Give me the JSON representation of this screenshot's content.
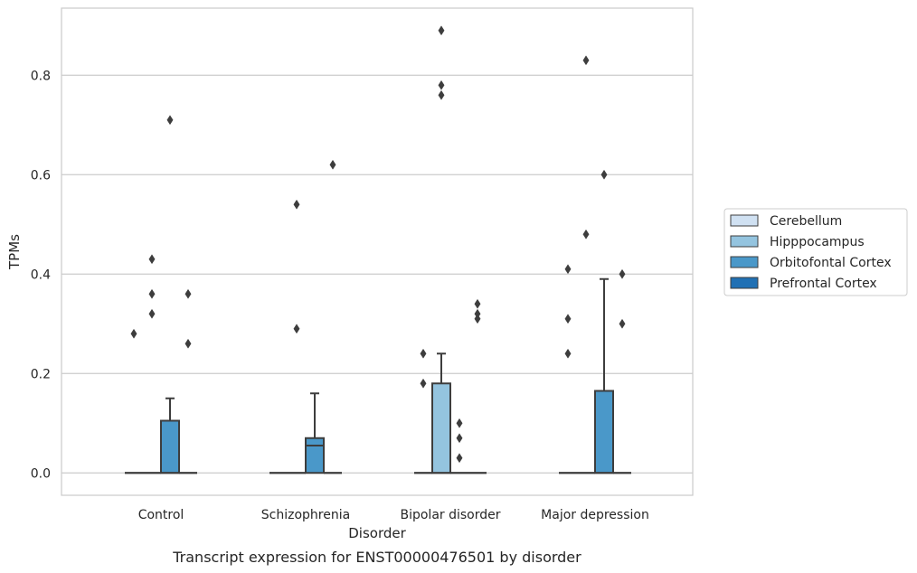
{
  "chart_data": {
    "type": "box",
    "xlabel": "Disorder",
    "ylabel": "TPMs",
    "caption": "Transcript expression for ENST00000476501 by disorder",
    "ylim": [
      -0.045,
      0.935
    ],
    "yticks": [
      0.0,
      0.2,
      0.4,
      0.6,
      0.8
    ],
    "ytick_labels": [
      "0.0",
      "0.2",
      "0.4",
      "0.6",
      "0.8"
    ],
    "grid": true,
    "legend_position": "right",
    "categories": [
      "Control",
      "Schizophrenia",
      "Bipolar disorder",
      "Major depression"
    ],
    "series": [
      {
        "name": "Cerebellum",
        "color": "#d0e1f2",
        "boxes": [
          {
            "q1": 0,
            "median": 0,
            "q3": 0,
            "whisker_low": 0,
            "whisker_high": 0,
            "fliers": [
              0.28
            ]
          },
          {
            "q1": 0,
            "median": 0,
            "q3": 0,
            "whisker_low": 0,
            "whisker_high": 0,
            "fliers": []
          },
          {
            "q1": 0,
            "median": 0,
            "q3": 0,
            "whisker_low": 0,
            "whisker_high": 0,
            "fliers": []
          },
          {
            "q1": 0,
            "median": 0,
            "q3": 0,
            "whisker_low": 0,
            "whisker_high": 0,
            "fliers": []
          }
        ]
      },
      {
        "name": "Hipppocampus",
        "color": "#94c4df",
        "boxes": [
          {
            "q1": 0,
            "median": 0,
            "q3": 0,
            "whisker_low": 0,
            "whisker_high": 0,
            "fliers": [
              0.32,
              0.36,
              0.43
            ]
          },
          {
            "q1": 0,
            "median": 0,
            "q3": 0,
            "whisker_low": 0,
            "whisker_high": 0,
            "fliers": [
              0.29,
              0.54
            ]
          },
          {
            "q1": 0,
            "median": 0,
            "q3": 0.18,
            "whisker_low": 0,
            "whisker_high": 0.24,
            "fliers": [
              0.76,
              0.78,
              0.89
            ]
          },
          {
            "q1": 0,
            "median": 0,
            "q3": 0,
            "whisker_low": 0,
            "whisker_high": 0,
            "fliers": [
              0.48,
              0.83
            ]
          }
        ]
      },
      {
        "name": "Orbitofontal Cortex",
        "color": "#4a98c9",
        "boxes": [
          {
            "q1": 0,
            "median": 0,
            "q3": 0.105,
            "whisker_low": 0,
            "whisker_high": 0.15,
            "fliers": [
              0.71
            ]
          },
          {
            "q1": 0,
            "median": 0.055,
            "q3": 0.07,
            "whisker_low": 0,
            "whisker_high": 0.16,
            "fliers": []
          },
          {
            "q1": 0,
            "median": 0,
            "q3": 0,
            "whisker_low": 0,
            "whisker_high": 0,
            "fliers": [
              0.03,
              0.07,
              0.1
            ]
          },
          {
            "q1": 0,
            "median": 0,
            "q3": 0.165,
            "whisker_low": 0,
            "whisker_high": 0.39,
            "fliers": [
              0.6
            ]
          }
        ]
      },
      {
        "name": "Prefrontal Cortex",
        "color": "#2070b4",
        "boxes": [
          {
            "q1": 0,
            "median": 0,
            "q3": 0,
            "whisker_low": 0,
            "whisker_high": 0,
            "fliers": [
              0.26,
              0.36
            ]
          },
          {
            "q1": 0,
            "median": 0,
            "q3": 0,
            "whisker_low": 0,
            "whisker_high": 0,
            "fliers": [
              0.62
            ]
          },
          {
            "q1": 0,
            "median": 0,
            "q3": 0,
            "whisker_low": 0,
            "whisker_high": 0,
            "fliers": [
              0.31,
              0.32,
              0.34
            ]
          },
          {
            "q1": 0,
            "median": 0,
            "q3": 0,
            "whisker_low": 0,
            "whisker_high": 0,
            "fliers": [
              0.3,
              0.4
            ]
          }
        ]
      }
    ],
    "extra_fliers": [
      {
        "category": "Bipolar disorder",
        "series": "Cerebellum",
        "values": [
          0.18,
          0.24
        ]
      },
      {
        "category": "Major depression",
        "series": "Cerebellum",
        "values": [
          0.24,
          0.31,
          0.41
        ]
      }
    ]
  }
}
